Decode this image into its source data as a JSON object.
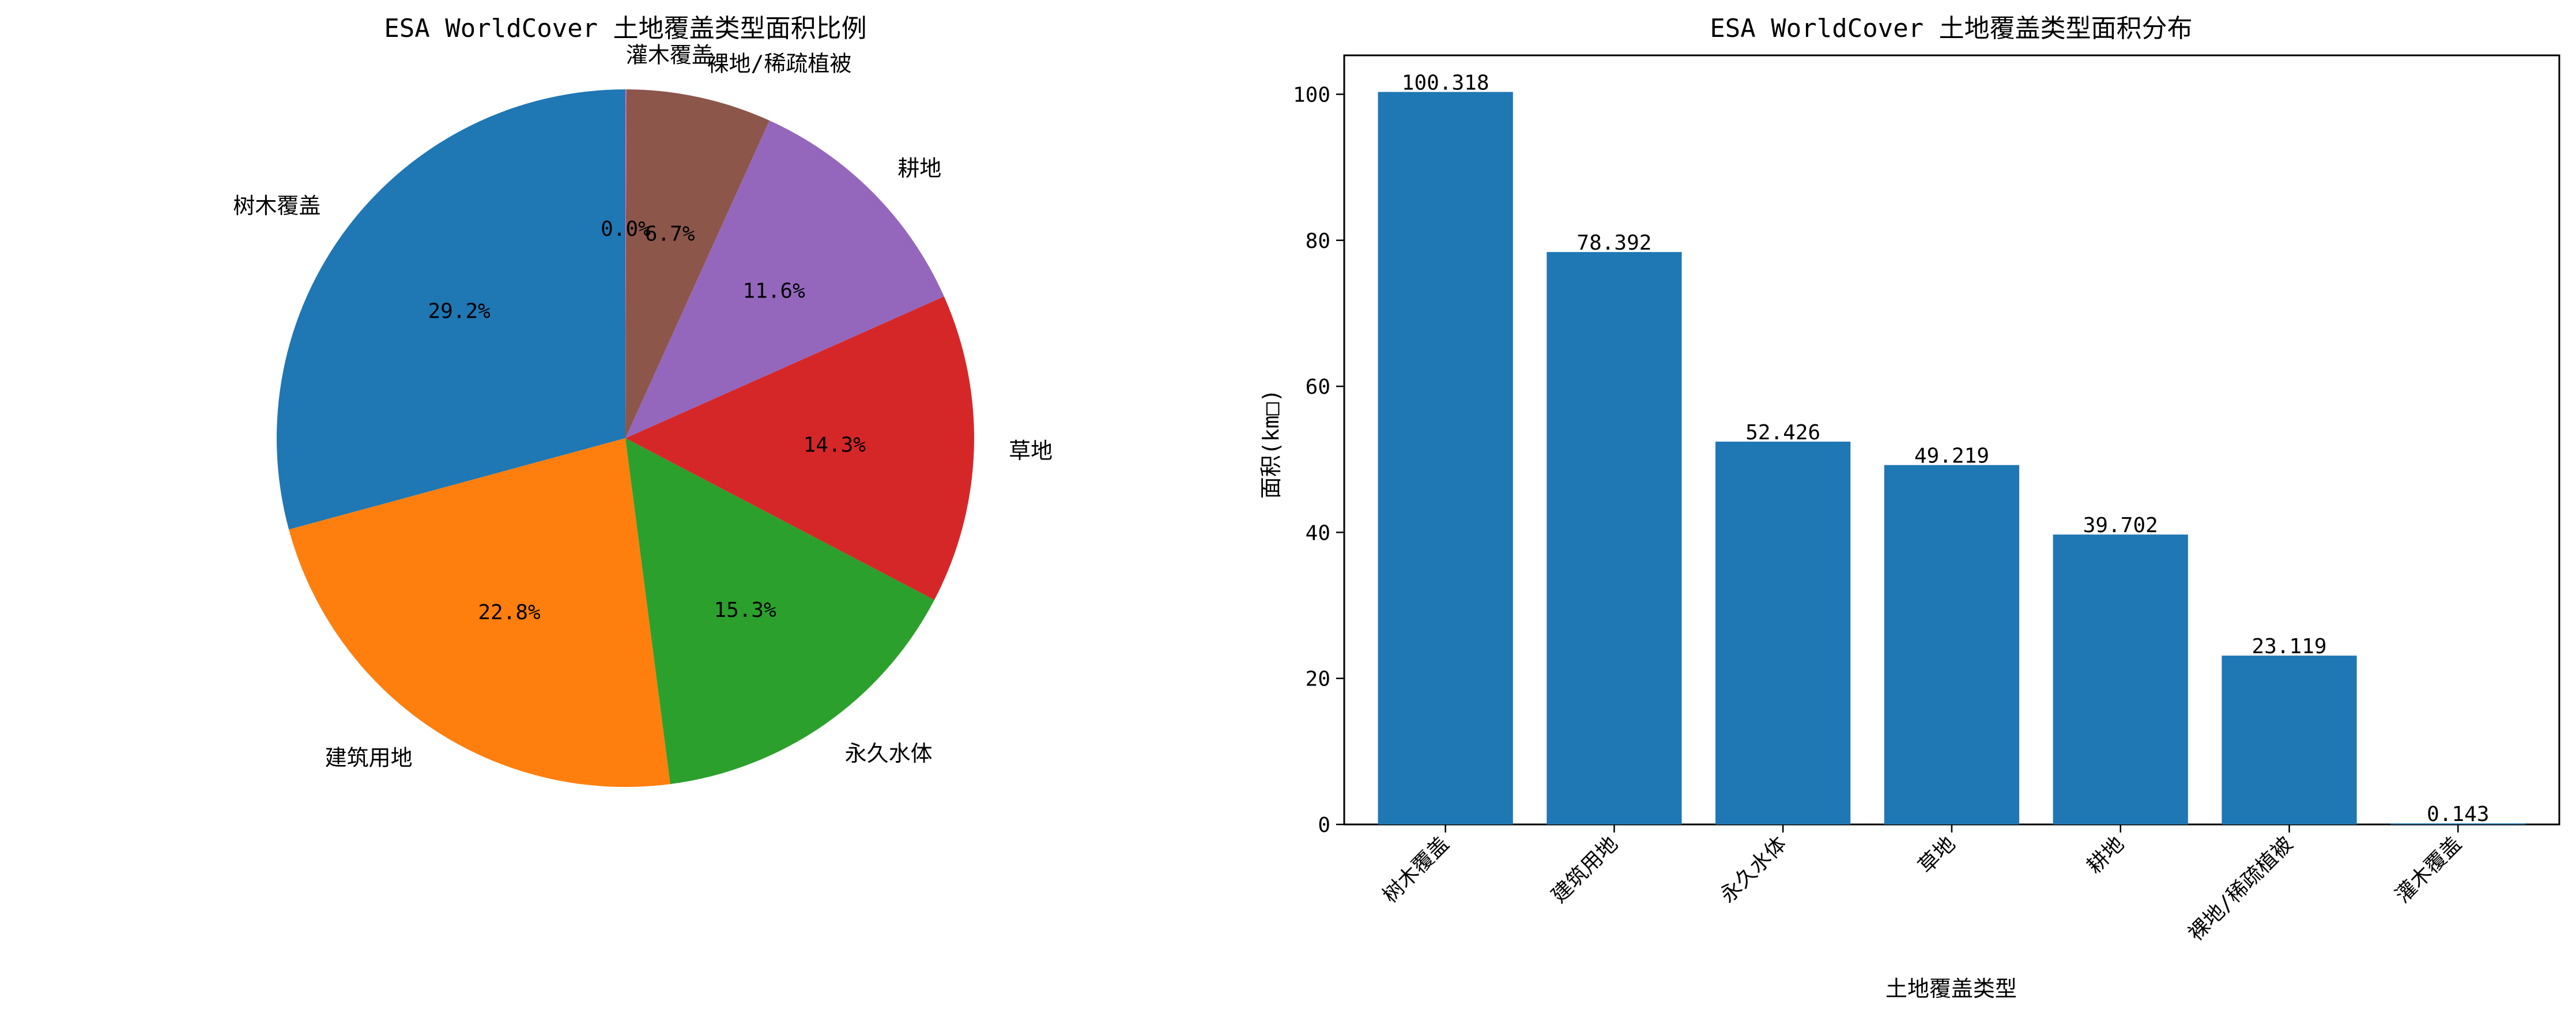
{
  "chart_data": [
    {
      "type": "pie",
      "title": "ESA WorldCover 土地覆盖类型面积比例",
      "start_angle_deg": 90,
      "direction": "counterclockwise",
      "slices": [
        {
          "label": "树木覆盖",
          "value": 100.318,
          "pct_label": "29.2%",
          "color": "#1f77b4"
        },
        {
          "label": "建筑用地",
          "value": 78.392,
          "pct_label": "22.8%",
          "color": "#ff7f0e"
        },
        {
          "label": "永久水体",
          "value": 52.426,
          "pct_label": "15.3%",
          "color": "#2ca02c"
        },
        {
          "label": "草地",
          "value": 49.219,
          "pct_label": "14.3%",
          "color": "#d62728"
        },
        {
          "label": "耕地",
          "value": 39.702,
          "pct_label": "11.6%",
          "color": "#9467bd"
        },
        {
          "label": "裸地/稀疏植被",
          "value": 23.119,
          "pct_label": "6.7%",
          "color": "#8c564b"
        },
        {
          "label": "灌木覆盖",
          "value": 0.143,
          "pct_label": "0.0%",
          "color": "#e377c2"
        }
      ]
    },
    {
      "type": "bar",
      "title": "ESA WorldCover 土地覆盖类型面积分布",
      "xlabel": "土地覆盖类型",
      "ylabel": "面积(km□)",
      "categories": [
        "树木覆盖",
        "建筑用地",
        "永久水体",
        "草地",
        "耕地",
        "裸地/稀疏植被",
        "灌木覆盖"
      ],
      "values": [
        100.318,
        78.392,
        52.426,
        49.219,
        39.702,
        23.119,
        0.143
      ],
      "value_labels": [
        "100.318",
        "78.392",
        "52.426",
        "49.219",
        "39.702",
        "23.119",
        "0.143"
      ],
      "ylim": [
        0,
        105.33
      ],
      "yticks": [
        0,
        20,
        40,
        60,
        80,
        100
      ],
      "bar_color": "#1f77b4",
      "grid": false
    }
  ]
}
